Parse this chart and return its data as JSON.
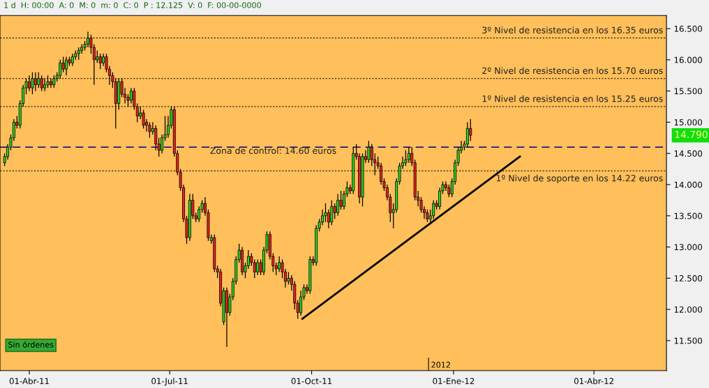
{
  "chart_data": {
    "type": "candlestick",
    "title": "1 d  H: 00:00  A: 0  M: 0  m: 0  C: 0  P : 12.125  V: 0  F: 00-00-0000",
    "xlim": [
      "2011-03-13",
      "2012-05-18"
    ],
    "xticks": [
      {
        "value": "2011-04-01",
        "label": "01-Abr-11"
      },
      {
        "value": "2011-07-01",
        "label": "01-Jul-11"
      },
      {
        "value": "2011-10-01",
        "label": "01-Oct-11"
      },
      {
        "value": "2012-01-01",
        "label": "01-Ene-12"
      },
      {
        "value": "2012-04-01",
        "label": "01-Abr-12"
      }
    ],
    "ylim": [
      11.02,
      16.71
    ],
    "yticks": [
      {
        "value": 11.5,
        "label": "11.500"
      },
      {
        "value": 12.0,
        "label": "12.000"
      },
      {
        "value": 12.5,
        "label": "12.500"
      },
      {
        "value": 13.0,
        "label": "13.000"
      },
      {
        "value": 13.5,
        "label": "13.500"
      },
      {
        "value": 14.0,
        "label": "14.000"
      },
      {
        "value": 14.5,
        "label": "14.500"
      },
      {
        "value": 15.0,
        "label": "15.000"
      },
      {
        "value": 15.5,
        "label": "15.500"
      },
      {
        "value": 16.0,
        "label": "16.000"
      },
      {
        "value": 16.5,
        "label": "16.500"
      }
    ],
    "grid": false,
    "legend": false,
    "series": [
      {
        "x": [
          "2011-03-16",
          "2011-03-18",
          "2011-03-20",
          "2011-03-22",
          "2011-03-24",
          "2011-03-26",
          "2011-03-28",
          "2011-03-30",
          "2011-04-01",
          "2011-04-03",
          "2011-04-05",
          "2011-04-07",
          "2011-04-09",
          "2011-04-11",
          "2011-04-13",
          "2011-04-15",
          "2011-04-17",
          "2011-04-19",
          "2011-04-21",
          "2011-04-23",
          "2011-04-25",
          "2011-04-27",
          "2011-04-29",
          "2011-05-01",
          "2011-05-03",
          "2011-05-05",
          "2011-05-07",
          "2011-05-09",
          "2011-05-11",
          "2011-05-13",
          "2011-05-15",
          "2011-05-17",
          "2011-05-19",
          "2011-05-21",
          "2011-05-23",
          "2011-05-25",
          "2011-05-27",
          "2011-05-29",
          "2011-05-31",
          "2011-06-02",
          "2011-06-04",
          "2011-06-06",
          "2011-06-08",
          "2011-06-10",
          "2011-06-12",
          "2011-06-14",
          "2011-06-16",
          "2011-06-18",
          "2011-06-20",
          "2011-06-22",
          "2011-06-24",
          "2011-06-26",
          "2011-06-28",
          "2011-06-30",
          "2011-07-02",
          "2011-07-04",
          "2011-07-06",
          "2011-07-08",
          "2011-07-10",
          "2011-07-12",
          "2011-07-14",
          "2011-07-16",
          "2011-07-18",
          "2011-07-20",
          "2011-07-22",
          "2011-07-24",
          "2011-07-26",
          "2011-07-28",
          "2011-07-30",
          "2011-08-01",
          "2011-08-03",
          "2011-08-05",
          "2011-08-07",
          "2011-08-09",
          "2011-08-11",
          "2011-08-13",
          "2011-08-15",
          "2011-08-17",
          "2011-08-19",
          "2011-08-21",
          "2011-08-23",
          "2011-08-25",
          "2011-08-27",
          "2011-08-29",
          "2011-08-31",
          "2011-09-02",
          "2011-09-04",
          "2011-09-06",
          "2011-09-08",
          "2011-09-10",
          "2011-09-12",
          "2011-09-14",
          "2011-09-16",
          "2011-09-18",
          "2011-09-20",
          "2011-09-22",
          "2011-09-24",
          "2011-09-26",
          "2011-09-28",
          "2011-09-30",
          "2011-10-02",
          "2011-10-04",
          "2011-10-06",
          "2011-10-08",
          "2011-10-10",
          "2011-10-12",
          "2011-10-14",
          "2011-10-16",
          "2011-10-18",
          "2011-10-20",
          "2011-10-22",
          "2011-10-24",
          "2011-10-26",
          "2011-10-28",
          "2011-10-30",
          "2011-11-01",
          "2011-11-03",
          "2011-11-05",
          "2011-11-07",
          "2011-11-09",
          "2011-11-11",
          "2011-11-13",
          "2011-11-15",
          "2011-11-17",
          "2011-11-19",
          "2011-11-21",
          "2011-11-23",
          "2011-11-25",
          "2011-11-27",
          "2011-11-29",
          "2011-12-01",
          "2011-12-03",
          "2011-12-05",
          "2011-12-07",
          "2011-12-09",
          "2011-12-11",
          "2011-12-13",
          "2011-12-15",
          "2011-12-17",
          "2011-12-19",
          "2011-12-21",
          "2011-12-23",
          "2011-12-25",
          "2011-12-27",
          "2011-12-29",
          "2011-12-31",
          "2012-01-02",
          "2012-01-04",
          "2012-01-06",
          "2012-01-08",
          "2012-01-10",
          "2012-01-12"
        ],
        "ohlc": [
          [
            14.35,
            14.5,
            14.3,
            14.45
          ],
          [
            14.45,
            14.65,
            14.4,
            14.6
          ],
          [
            14.6,
            14.8,
            14.55,
            14.75
          ],
          [
            14.75,
            15.05,
            14.7,
            15.0
          ],
          [
            15.0,
            15.1,
            14.9,
            14.95
          ],
          [
            14.95,
            15.35,
            14.9,
            15.3
          ],
          [
            15.3,
            15.6,
            15.25,
            15.55
          ],
          [
            15.55,
            15.7,
            15.45,
            15.65
          ],
          [
            15.65,
            15.75,
            15.5,
            15.55
          ],
          [
            15.55,
            15.8,
            15.45,
            15.7
          ],
          [
            15.7,
            15.8,
            15.5,
            15.6
          ],
          [
            15.6,
            15.8,
            15.55,
            15.7
          ],
          [
            15.7,
            15.75,
            15.5,
            15.55
          ],
          [
            15.55,
            15.7,
            15.5,
            15.6
          ],
          [
            15.6,
            15.75,
            15.55,
            15.65
          ],
          [
            15.65,
            15.7,
            15.55,
            15.6
          ],
          [
            15.6,
            15.75,
            15.55,
            15.7
          ],
          [
            15.7,
            15.8,
            15.65,
            15.75
          ],
          [
            15.75,
            16.0,
            15.7,
            15.95
          ],
          [
            15.95,
            16.05,
            15.8,
            15.85
          ],
          [
            15.85,
            16.05,
            15.75,
            16.0
          ],
          [
            16.0,
            16.05,
            15.9,
            15.95
          ],
          [
            15.95,
            16.1,
            15.9,
            16.05
          ],
          [
            16.05,
            16.15,
            16.0,
            16.1
          ],
          [
            16.1,
            16.2,
            16.0,
            16.15
          ],
          [
            16.15,
            16.25,
            16.1,
            16.2
          ],
          [
            16.2,
            16.3,
            16.15,
            16.25
          ],
          [
            16.25,
            16.45,
            16.2,
            16.35
          ],
          [
            16.35,
            16.4,
            16.1,
            16.2
          ],
          [
            16.2,
            16.25,
            15.6,
            16.0
          ],
          [
            16.0,
            16.15,
            15.95,
            16.05
          ],
          [
            16.05,
            16.1,
            15.85,
            15.95
          ],
          [
            15.95,
            16.1,
            15.9,
            16.05
          ],
          [
            16.05,
            16.1,
            15.8,
            15.85
          ],
          [
            15.85,
            15.9,
            15.6,
            15.75
          ],
          [
            15.75,
            15.8,
            15.55,
            15.65
          ],
          [
            15.65,
            15.7,
            14.9,
            15.3
          ],
          [
            15.3,
            15.7,
            15.2,
            15.65
          ],
          [
            15.65,
            15.7,
            15.4,
            15.45
          ],
          [
            15.45,
            15.55,
            15.3,
            15.4
          ],
          [
            15.4,
            15.45,
            15.25,
            15.35
          ],
          [
            15.35,
            15.55,
            15.3,
            15.5
          ],
          [
            15.5,
            15.55,
            15.2,
            15.25
          ],
          [
            15.25,
            15.3,
            15.0,
            15.1
          ],
          [
            15.1,
            15.25,
            15.05,
            15.15
          ],
          [
            15.15,
            15.2,
            14.9,
            14.95
          ],
          [
            15.0,
            15.05,
            14.85,
            14.95
          ],
          [
            14.95,
            15.0,
            14.75,
            14.85
          ],
          [
            14.85,
            15.0,
            14.8,
            14.9
          ],
          [
            14.9,
            14.95,
            14.55,
            14.65
          ],
          [
            14.65,
            14.75,
            14.45,
            14.55
          ],
          [
            14.55,
            14.8,
            14.5,
            14.75
          ],
          [
            14.75,
            15.1,
            14.7,
            14.8
          ],
          [
            14.8,
            15.1,
            14.75,
            14.95
          ],
          [
            14.95,
            15.25,
            14.9,
            15.2
          ],
          [
            15.2,
            15.25,
            14.45,
            14.5
          ],
          [
            14.5,
            14.55,
            14.15,
            14.2
          ],
          [
            14.2,
            14.25,
            13.9,
            13.95
          ],
          [
            13.95,
            14.0,
            13.4,
            13.45
          ],
          [
            13.45,
            13.5,
            13.05,
            13.15
          ],
          [
            13.15,
            13.85,
            13.1,
            13.75
          ],
          [
            13.75,
            13.85,
            13.45,
            13.5
          ],
          [
            13.5,
            13.55,
            13.4,
            13.45
          ],
          [
            13.45,
            13.65,
            13.4,
            13.6
          ],
          [
            13.6,
            13.75,
            13.55,
            13.7
          ],
          [
            13.7,
            13.8,
            13.5,
            13.55
          ],
          [
            13.55,
            13.6,
            13.1,
            13.15
          ],
          [
            13.1,
            13.2,
            13.05,
            13.15
          ],
          [
            13.15,
            13.2,
            12.6,
            12.65
          ],
          [
            12.65,
            12.7,
            12.5,
            12.6
          ],
          [
            12.6,
            12.65,
            12.05,
            12.1
          ],
          [
            11.8,
            12.35,
            11.75,
            12.3
          ],
          [
            12.3,
            12.35,
            11.4,
            11.95
          ],
          [
            11.95,
            12.25,
            11.9,
            12.2
          ],
          [
            12.2,
            12.5,
            12.15,
            12.45
          ],
          [
            12.45,
            12.85,
            12.4,
            12.8
          ],
          [
            12.8,
            13.05,
            12.75,
            12.95
          ],
          [
            12.95,
            13.0,
            12.55,
            12.6
          ],
          [
            12.6,
            12.75,
            12.5,
            12.7
          ],
          [
            12.7,
            12.95,
            12.65,
            12.85
          ],
          [
            12.85,
            12.9,
            12.7,
            12.75
          ],
          [
            12.75,
            12.8,
            12.5,
            12.6
          ],
          [
            12.6,
            12.8,
            12.55,
            12.75
          ],
          [
            12.75,
            12.8,
            12.55,
            12.6
          ],
          [
            12.6,
            13.0,
            12.55,
            12.95
          ],
          [
            12.95,
            13.25,
            12.9,
            13.2
          ],
          [
            13.2,
            13.25,
            12.8,
            12.85
          ],
          [
            12.85,
            12.9,
            12.6,
            12.7
          ],
          [
            12.7,
            12.75,
            12.55,
            12.65
          ],
          [
            12.65,
            12.85,
            12.6,
            12.75
          ],
          [
            12.75,
            12.8,
            12.5,
            12.6
          ],
          [
            12.6,
            12.65,
            12.35,
            12.45
          ],
          [
            12.45,
            12.6,
            12.4,
            12.5
          ],
          [
            12.5,
            12.55,
            12.3,
            12.4
          ],
          [
            12.4,
            12.45,
            12.0,
            12.1
          ],
          [
            12.1,
            12.15,
            11.85,
            11.95
          ],
          [
            11.95,
            12.3,
            11.9,
            12.2
          ],
          [
            12.2,
            12.4,
            12.15,
            12.35
          ],
          [
            12.35,
            12.4,
            12.25,
            12.3
          ],
          [
            12.3,
            12.85,
            12.25,
            12.8
          ],
          [
            12.8,
            12.85,
            12.7,
            12.75
          ],
          [
            12.75,
            13.35,
            12.7,
            13.3
          ],
          [
            13.3,
            13.45,
            13.25,
            13.4
          ],
          [
            13.4,
            13.6,
            13.35,
            13.5
          ],
          [
            13.5,
            13.7,
            13.4,
            13.55
          ],
          [
            13.55,
            13.6,
            13.3,
            13.4
          ],
          [
            13.4,
            13.75,
            13.35,
            13.65
          ],
          [
            13.65,
            13.7,
            13.45,
            13.55
          ],
          [
            13.55,
            13.85,
            13.5,
            13.75
          ],
          [
            13.75,
            13.9,
            13.6,
            13.65
          ],
          [
            13.65,
            13.9,
            13.6,
            13.85
          ],
          [
            13.85,
            14.05,
            13.8,
            13.95
          ],
          [
            13.95,
            14.0,
            13.85,
            13.9
          ],
          [
            13.9,
            14.6,
            13.85,
            14.5
          ],
          [
            14.5,
            14.65,
            14.4,
            14.45
          ],
          [
            14.45,
            14.5,
            13.7,
            13.8
          ],
          [
            13.8,
            14.5,
            13.65,
            14.45
          ],
          [
            14.45,
            14.55,
            14.35,
            14.4
          ],
          [
            14.4,
            14.7,
            14.35,
            14.6
          ],
          [
            14.6,
            14.65,
            14.3,
            14.4
          ],
          [
            14.4,
            14.5,
            14.15,
            14.35
          ],
          [
            14.35,
            14.45,
            14.25,
            14.3
          ],
          [
            14.3,
            14.35,
            14.0,
            14.05
          ],
          [
            14.05,
            14.1,
            13.9,
            13.95
          ],
          [
            13.95,
            14.0,
            13.75,
            13.8
          ],
          [
            13.8,
            13.85,
            13.4,
            13.55
          ],
          [
            13.55,
            13.7,
            13.3,
            13.6
          ],
          [
            13.6,
            14.1,
            13.55,
            14.05
          ],
          [
            14.05,
            14.35,
            14.0,
            14.3
          ],
          [
            14.3,
            14.45,
            14.25,
            14.35
          ],
          [
            14.35,
            14.55,
            14.3,
            14.4
          ],
          [
            14.4,
            14.6,
            14.35,
            14.5
          ],
          [
            14.5,
            14.6,
            14.3,
            14.35
          ],
          [
            14.35,
            14.4,
            13.75,
            13.8
          ],
          [
            13.8,
            13.9,
            13.65,
            13.75
          ],
          [
            13.75,
            13.8,
            13.55,
            13.6
          ],
          [
            13.6,
            13.65,
            13.45,
            13.55
          ],
          [
            13.55,
            13.6,
            13.4,
            13.45
          ],
          [
            13.45,
            13.6,
            13.4,
            13.5
          ],
          [
            13.5,
            13.75,
            13.45,
            13.7
          ],
          [
            13.7,
            13.75,
            13.6,
            13.65
          ],
          [
            13.65,
            13.95,
            13.6,
            13.9
          ],
          [
            13.9,
            14.05,
            13.85,
            14.0
          ],
          [
            14.0,
            14.05,
            13.9,
            13.95
          ],
          [
            13.95,
            14.0,
            13.8,
            13.85
          ],
          [
            13.85,
            14.1,
            13.8,
            14.05
          ],
          [
            14.05,
            14.4,
            14.0,
            14.35
          ],
          [
            14.35,
            14.6,
            14.3,
            14.55
          ],
          [
            14.55,
            14.7,
            14.5,
            14.6
          ],
          [
            14.6,
            14.7,
            14.55,
            14.65
          ],
          [
            14.65,
            15.0,
            14.6,
            14.9
          ],
          [
            14.9,
            15.05,
            14.7,
            14.79
          ]
        ],
        "colors": [
          "#22dd22",
          "#22dd22",
          "#22dd22",
          "#22dd22",
          "#ee2222",
          "#22dd22",
          "#22dd22",
          "#22dd22",
          "#ee2222",
          "#22dd22",
          "#ee2222",
          "#22dd22",
          "#ee2222",
          "#22dd22",
          "#22dd22",
          "#ee2222",
          "#22dd22",
          "#22dd22",
          "#22dd22",
          "#ee2222",
          "#22dd22",
          "#ee2222",
          "#22dd22",
          "#22dd22",
          "#22dd22",
          "#22dd22",
          "#22dd22",
          "#22dd22",
          "#ee2222",
          "#ee2222",
          "#22dd22",
          "#ee2222",
          "#22dd22",
          "#ee2222",
          "#ee2222",
          "#ee2222",
          "#ee2222",
          "#22dd22",
          "#ee2222",
          "#ee2222",
          "#ee2222",
          "#22dd22",
          "#ee2222",
          "#ee2222",
          "#22dd22",
          "#ee2222",
          "#ee2222",
          "#ee2222",
          "#22dd22",
          "#ee2222",
          "#ee2222",
          "#22dd22",
          "#22dd22",
          "#22dd22",
          "#22dd22",
          "#ee2222",
          "#ee2222",
          "#ee2222",
          "#ee2222",
          "#ee2222",
          "#22dd22",
          "#ee2222",
          "#ee2222",
          "#22dd22",
          "#22dd22",
          "#ee2222",
          "#ee2222",
          "#22dd22",
          "#ee2222",
          "#ee2222",
          "#ee2222",
          "#22dd22",
          "#ee2222",
          "#22dd22",
          "#22dd22",
          "#22dd22",
          "#22dd22",
          "#ee2222",
          "#22dd22",
          "#22dd22",
          "#ee2222",
          "#ee2222",
          "#22dd22",
          "#ee2222",
          "#22dd22",
          "#22dd22",
          "#ee2222",
          "#ee2222",
          "#ee2222",
          "#22dd22",
          "#ee2222",
          "#ee2222",
          "#22dd22",
          "#ee2222",
          "#ee2222",
          "#ee2222",
          "#22dd22",
          "#22dd22",
          "#ee2222",
          "#22dd22",
          "#ee2222",
          "#22dd22",
          "#22dd22",
          "#22dd22",
          "#22dd22",
          "#ee2222",
          "#22dd22",
          "#ee2222",
          "#22dd22",
          "#ee2222",
          "#22dd22",
          "#22dd22",
          "#ee2222",
          "#22dd22",
          "#ee2222",
          "#ee2222",
          "#22dd22",
          "#ee2222",
          "#22dd22",
          "#ee2222",
          "#ee2222",
          "#ee2222",
          "#ee2222",
          "#ee2222",
          "#ee2222",
          "#ee2222",
          "#22dd22",
          "#22dd22",
          "#22dd22",
          "#22dd22",
          "#22dd22",
          "#22dd22",
          "#ee2222",
          "#ee2222",
          "#ee2222",
          "#ee2222",
          "#ee2222",
          "#ee2222",
          "#22dd22",
          "#22dd22",
          "#ee2222",
          "#22dd22",
          "#22dd22",
          "#ee2222",
          "#ee2222",
          "#22dd22",
          "#22dd22",
          "#22dd22",
          "#22dd22",
          "#22dd22",
          "#22dd22",
          "#ee2222"
        ]
      },
      {
        "type": "line",
        "color": "#000000",
        "x": [
          "2011-09-25",
          "2012-02-13"
        ],
        "values": [
          11.85,
          14.45
        ]
      }
    ],
    "ref_lines": [
      {
        "axis": "y",
        "value": 16.35,
        "label": "3º Nivel de resistencia en los 16.35 euros",
        "color": "#000000",
        "line_style": "dotted"
      },
      {
        "axis": "y",
        "value": 15.7,
        "label": "2º Nivel de resistencia en los 15.70 euros",
        "color": "#000000",
        "line_style": "dotted"
      },
      {
        "axis": "y",
        "value": 15.25,
        "label": "1º Nivel de resistencia en los 15.25 euros",
        "color": "#000000",
        "line_style": "dotted"
      },
      {
        "axis": "y",
        "value": 14.6,
        "label": "Zona de control: 14.60 euros",
        "color": "#000080",
        "line_style": "dashed"
      },
      {
        "axis": "y",
        "value": 14.22,
        "label": "1º Nivel de soporte en los 14.22 euros",
        "color": "#000000",
        "line_style": "dotted"
      }
    ],
    "annotations": [
      "14.790",
      "2012",
      "Sin órdenes"
    ]
  }
}
